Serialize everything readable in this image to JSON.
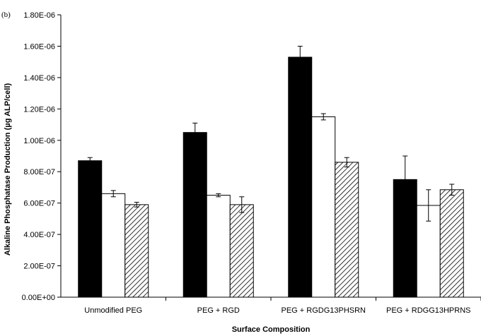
{
  "chart_data": {
    "type": "bar",
    "panel_label": "(b)",
    "title": "",
    "xlabel": "Surface Composition",
    "ylabel": "Alkaline Phosphatase Production (µg ALP/cell)",
    "ylim": [
      0,
      1.8e-06
    ],
    "yticks": [
      0,
      2e-07,
      4e-07,
      6e-07,
      8e-07,
      1e-06,
      1.2e-06,
      1.4e-06,
      1.6e-06,
      1.8e-06
    ],
    "ytick_labels": [
      "0.00E+00",
      "2.00E-07",
      "4.00E-07",
      "6.00E-07",
      "8.00E-07",
      "1.00E-06",
      "1.20E-06",
      "1.40E-06",
      "1.60E-06",
      "1.80E-06"
    ],
    "categories": [
      "Unmodified PEG",
      "PEG + RGD",
      "PEG + RGDG13PHSRN",
      "PEG + RDGG13HPRNS"
    ],
    "grid": false,
    "legend": "none",
    "series": [
      {
        "fill": "#000000",
        "pattern": "solid",
        "values": [
          8.7e-07,
          1.05e-06,
          1.53e-06,
          7.5e-07
        ],
        "errors": [
          2e-08,
          6e-08,
          7e-08,
          1.5e-07
        ]
      },
      {
        "fill": "#ffffff",
        "pattern": "solid",
        "values": [
          6.6e-07,
          6.5e-07,
          1.15e-06,
          5.85e-07
        ],
        "errors": [
          2e-08,
          1e-08,
          2e-08,
          1e-07
        ]
      },
      {
        "fill": "#ffffff",
        "pattern": "diagonal-hatch",
        "values": [
          5.9e-07,
          5.9e-07,
          8.6e-07,
          6.85e-07
        ],
        "errors": [
          1.5e-08,
          5e-08,
          3e-08,
          3.5e-08
        ]
      }
    ]
  }
}
